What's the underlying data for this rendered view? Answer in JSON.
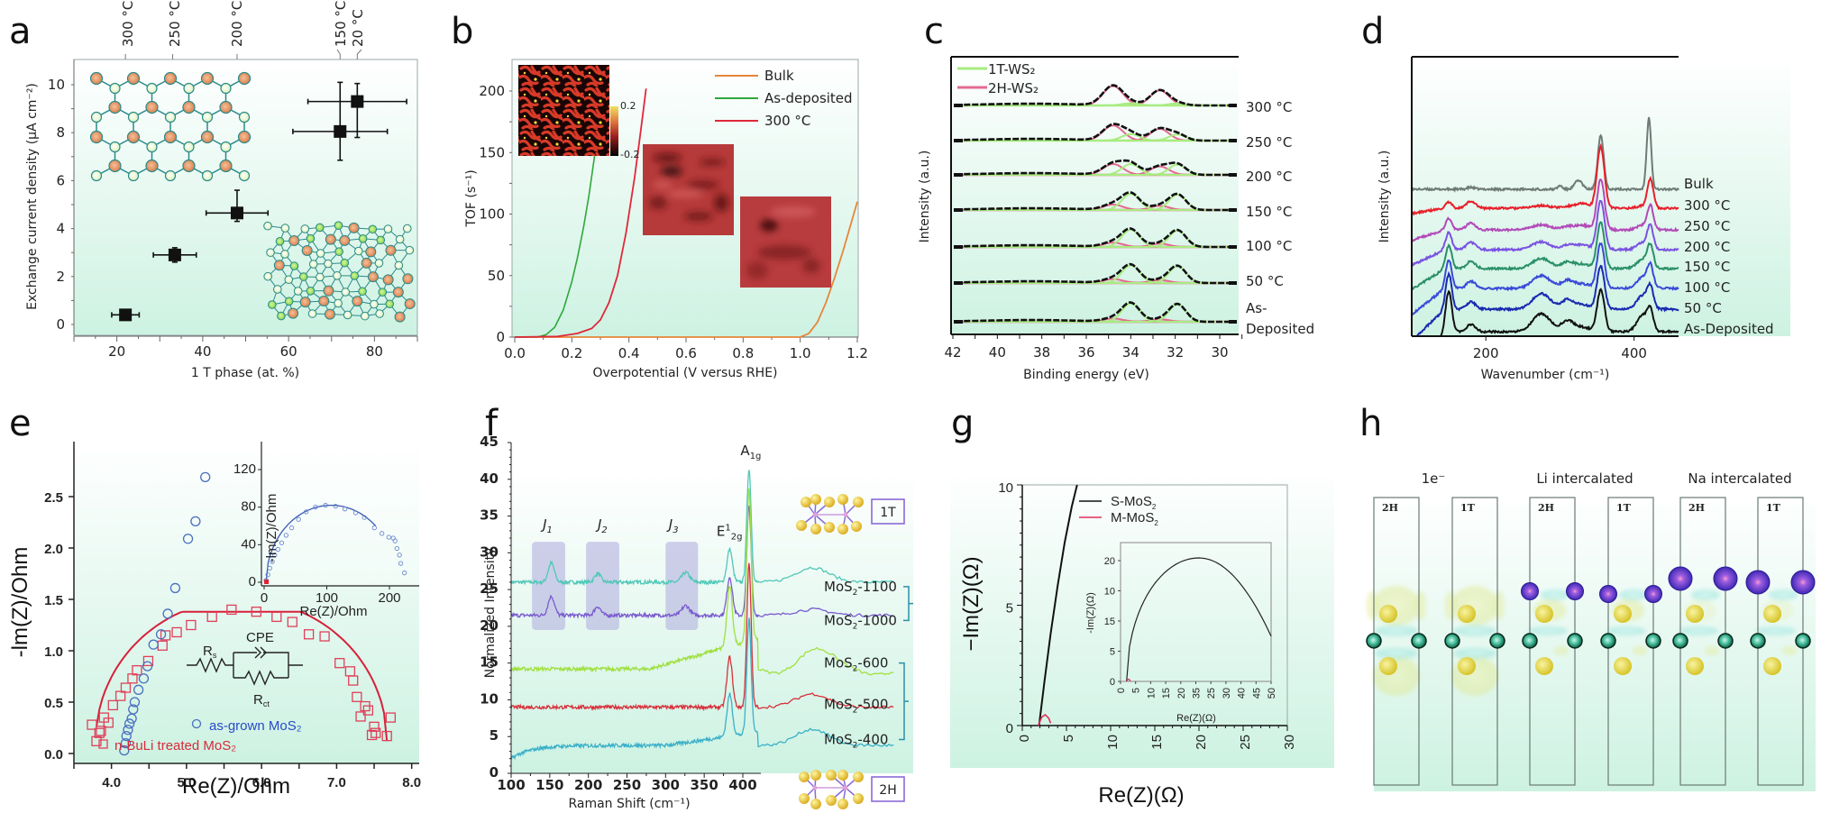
{
  "figure": {
    "panels": [
      "a",
      "b",
      "c",
      "d",
      "e",
      "f",
      "g",
      "h"
    ]
  },
  "chart_data": [
    {
      "panel": "a",
      "type": "scatter",
      "xlabel": "1 T phase (at. %)",
      "ylabel": "Exchange current density (μA cm⁻²)",
      "xlim": [
        10,
        90
      ],
      "ylim": [
        -0.5,
        11
      ],
      "xticks": [
        20,
        40,
        60,
        80
      ],
      "yticks": [
        0,
        2,
        4,
        6,
        8,
        10
      ],
      "top_axis_labels": [
        "300 °C",
        "250 °C",
        "200 °C",
        "150 °C",
        "20 °C"
      ],
      "top_axis_positions": [
        22,
        33,
        48,
        72,
        76
      ],
      "points": [
        {
          "label": "300 °C",
          "x": 22,
          "y": 0.4,
          "xerr": [
            3.2,
            3.2
          ],
          "yerr": [
            0.15,
            0.15
          ]
        },
        {
          "label": "250 °C",
          "x": 33.5,
          "y": 2.9,
          "xerr": [
            5,
            5
          ],
          "yerr": [
            0.3,
            0.3
          ]
        },
        {
          "label": "200 °C",
          "x": 48,
          "y": 4.65,
          "xerr": [
            7.2,
            7.2
          ],
          "yerr": [
            0.35,
            0.95
          ]
        },
        {
          "label": "150 °C",
          "x": 72,
          "y": 8.05,
          "xerr": [
            11,
            11
          ],
          "yerr": [
            1.2,
            2.05
          ]
        },
        {
          "label": "20 °C",
          "x": 76,
          "y": 9.3,
          "xerr": [
            11.5,
            11.5
          ],
          "yerr": [
            1.5,
            0.75
          ]
        }
      ],
      "insets": [
        "2H lattice (hexagonal)",
        "1T lattice (distorted)"
      ]
    },
    {
      "panel": "b",
      "type": "line",
      "xlabel": "Overpotential (V versus RHE)",
      "ylabel": "TOF (s⁻¹)",
      "xlim": [
        0,
        1.2
      ],
      "ylim": [
        0,
        220
      ],
      "xticks": [
        "0.0",
        "0.2",
        "0.4",
        "0.6",
        "0.8",
        "1.0",
        "1.2"
      ],
      "yticks": [
        0,
        50,
        100,
        150,
        200
      ],
      "legend": [
        "Bulk",
        "As-deposited",
        "300 °C"
      ],
      "legend_position": "top-right",
      "colorbar_labels": [
        "0.2",
        "-0.2"
      ],
      "series": [
        {
          "name": "Bulk",
          "color": "#e8853a",
          "x": [
            0,
            1.0,
            1.03,
            1.06,
            1.09,
            1.12,
            1.15,
            1.18,
            1.2
          ],
          "y": [
            0,
            0,
            3,
            12,
            28,
            48,
            70,
            94,
            110
          ]
        },
        {
          "name": "As-deposited",
          "color": "#2fa83a",
          "x": [
            0,
            0.08,
            0.11,
            0.14,
            0.17,
            0.2,
            0.22,
            0.24,
            0.26,
            0.28
          ],
          "y": [
            0,
            0,
            2,
            8,
            22,
            45,
            65,
            88,
            115,
            148
          ]
        },
        {
          "name": "300 °C",
          "color": "#e0283a",
          "x": [
            0,
            0.15,
            0.22,
            0.27,
            0.3,
            0.33,
            0.36,
            0.39,
            0.42,
            0.44,
            0.46
          ],
          "y": [
            0,
            0.5,
            3,
            7,
            14,
            28,
            50,
            85,
            130,
            165,
            202
          ]
        }
      ]
    },
    {
      "panel": "c",
      "type": "line",
      "xlabel": "Binding energy (eV)",
      "ylabel": "Intensity (a.u.)",
      "xlim": [
        42,
        29
      ],
      "xticks": [
        42,
        40,
        38,
        36,
        34,
        32,
        30
      ],
      "legend": [
        "1T-WS₂",
        "2H-WS₂"
      ],
      "legend_position": "top-left",
      "series_labels": [
        "300 °C",
        "250 °C",
        "200 °C",
        "150 °C",
        "100 °C",
        "50 °C",
        "As-Deposited"
      ],
      "peaks_eV": {
        "2H": [
          34.8,
          32.7
        ],
        "1T": [
          34.0,
          31.9
        ]
      },
      "fraction_1T": [
        0.1,
        0.3,
        0.5,
        0.75,
        0.8,
        0.82,
        0.85
      ]
    },
    {
      "panel": "d",
      "type": "line",
      "xlabel": "Wavenumber (cm⁻¹)",
      "ylabel": "Intensity (a.u.)",
      "xlim": [
        100,
        460
      ],
      "xticks": [
        200,
        400
      ],
      "series_labels": [
        "Bulk",
        "300 °C",
        "250 °C",
        "200 °C",
        "150 °C",
        "100 °C",
        "50 °C",
        "As-Deposited"
      ],
      "series_colors": [
        "#6f7b76",
        "#e8202a",
        "#b24ab8",
        "#7a52e0",
        "#2a9068",
        "#3a4ad8",
        "#1a2ab0",
        "#111111"
      ],
      "peaks_cm": [
        150,
        180,
        270,
        355,
        420
      ]
    },
    {
      "panel": "e",
      "type": "scatter",
      "xlabel": "Re(Z)/Ohm",
      "ylabel": "-lm(Z)/Ohm",
      "xlim": [
        3.5,
        8.1
      ],
      "ylim": [
        -0.05,
        3.0
      ],
      "xticks": [
        "4.0",
        "5.0",
        "6.0",
        "7.0",
        "8.0"
      ],
      "yticks": [
        "0.0",
        "0.5",
        "1.0",
        "1.5",
        "2.0",
        "2.5"
      ],
      "legend": [
        "as-grown MoS₂",
        "n-BuLi treated MoS₂"
      ],
      "legend_position": "bottom-center",
      "circuit_labels": [
        "R",
        "s",
        "CPE",
        "R",
        "ct"
      ],
      "series": [
        {
          "name": "as-grown MoS₂",
          "marker": "circle",
          "color": "#4a6fc0",
          "x": [
            4.17,
            4.19,
            4.2,
            4.22,
            4.24,
            4.27,
            4.29,
            4.31,
            4.36,
            4.43,
            4.48,
            4.56,
            4.66,
            4.75,
            4.85,
            5.02,
            5.12,
            5.25
          ],
          "y": [
            0.03,
            0.1,
            0.17,
            0.23,
            0.29,
            0.34,
            0.43,
            0.5,
            0.62,
            0.73,
            0.85,
            1.06,
            1.16,
            1.36,
            1.61,
            2.09,
            2.26,
            2.69
          ]
        },
        {
          "name": "n-BuLi treated MoS₂",
          "marker": "square",
          "color": "#e0405a",
          "x": [
            3.74,
            3.8,
            3.84,
            3.86,
            3.9,
            3.96,
            4.02,
            4.12,
            4.19,
            4.28,
            4.34,
            4.49,
            4.68,
            4.72,
            4.87,
            5.06,
            5.34,
            5.6,
            5.93,
            6.2,
            6.41,
            6.63,
            6.84,
            7.04,
            7.18,
            7.22,
            7.27,
            7.32,
            7.38,
            7.42,
            7.47,
            7.5,
            7.52,
            7.67,
            7.72
          ],
          "y": [
            0.28,
            0.12,
            0.2,
            0.22,
            0.35,
            0.3,
            0.47,
            0.56,
            0.64,
            0.73,
            0.81,
            0.9,
            1.05,
            1.15,
            1.18,
            1.25,
            1.33,
            1.4,
            1.38,
            1.33,
            1.28,
            1.16,
            1.14,
            0.88,
            0.8,
            0.71,
            0.55,
            0.36,
            0.46,
            0.42,
            0.18,
            0.26,
            0.2,
            0.17,
            0.35
          ]
        },
        {
          "name": "fit",
          "type": "line",
          "color": "#d8203a",
          "center": 5.73,
          "radius_re": 1.94,
          "peak": 1.38
        }
      ],
      "inset": {
        "xlabel": "Re(Z)/Ohm",
        "ylabel": "-lm(Z)/Ohm",
        "xlim": [
          -5,
          225
        ],
        "ylim": [
          -5,
          145
        ],
        "xticks": [
          0,
          100,
          200
        ],
        "yticks": [
          0,
          40,
          80,
          120
        ],
        "fit_peak": 82,
        "fit_end_x": 178,
        "points_x": [
          3,
          6,
          9,
          13,
          17,
          22,
          28,
          35,
          44,
          55,
          67,
          82,
          98,
          114,
          129,
          146,
          160,
          176,
          188,
          199,
          206,
          209,
          212,
          216,
          218,
          224
        ],
        "points_y": [
          2,
          8,
          15,
          22,
          29,
          35,
          42,
          50,
          58,
          67,
          75,
          80,
          82,
          81,
          78,
          74,
          69,
          58,
          52,
          48,
          47,
          44,
          36,
          29,
          20,
          10
        ]
      }
    },
    {
      "panel": "f",
      "type": "line",
      "xlabel": "Raman Shift (cm⁻¹)",
      "ylabel": "Normalized Intensity",
      "xlim": [
        100,
        425
      ],
      "ylim": [
        0,
        45
      ],
      "xticks": [
        100,
        150,
        200,
        250,
        300,
        350,
        400
      ],
      "yticks": [
        0,
        5,
        10,
        15,
        20,
        25,
        30,
        35,
        40,
        45
      ],
      "annotations": [
        "J1",
        "J2",
        "J3",
        "E¹₂g",
        "A₁g",
        "1T",
        "2H"
      ],
      "highlight_bands_cm": [
        [
          127,
          170
        ],
        [
          197,
          240
        ],
        [
          300,
          342
        ]
      ],
      "series": [
        {
          "name": "MoS₂-1100",
          "color": "#4fc8b8",
          "baseline": 26,
          "E2g": 30.5,
          "A1g": 41.5,
          "broad": 28
        },
        {
          "name": "MoS₂-1000",
          "color": "#7a5ad0",
          "baseline": 21.5,
          "E2g": 26.7,
          "A1g": 36.3,
          "broad": 22.3
        },
        {
          "name": "MoS₂-600",
          "color": "#a0e040",
          "baseline": 14.2,
          "E2g": 22.3,
          "A1g": 35.0,
          "broad": 16.5
        },
        {
          "name": "MoS₂-500",
          "color": "#d8303a",
          "baseline": 9.0,
          "E2g": 15.8,
          "A1g": 28.5,
          "broad": 10.8
        },
        {
          "name": "MoS₂-400",
          "color": "#3ab0c8",
          "baseline": 3.8,
          "E2g": 9.5,
          "A1g": 19.3,
          "broad": 6.0
        }
      ]
    },
    {
      "panel": "g",
      "type": "line",
      "xlabel": "Re(Z)(Ω)",
      "ylabel": "−Im(Z)(Ω)",
      "xlim": [
        0,
        30
      ],
      "ylim": [
        0,
        10
      ],
      "xticks": [
        "0",
        "5",
        "10",
        "15",
        "20",
        "25",
        "30"
      ],
      "yticks": [
        "0",
        "5",
        "10"
      ],
      "legend": [
        "S-MoS₂",
        "M-MoS₂"
      ],
      "legend_position": "top-left",
      "series": [
        {
          "name": "S-MoS₂",
          "color": "#111111",
          "x": [
            1.9,
            2.5,
            3.2,
            4.0,
            4.8,
            5.6,
            6.2
          ],
          "y": [
            0,
            1.8,
            3.8,
            5.8,
            7.6,
            9.1,
            10
          ]
        },
        {
          "name": "M-MoS₂",
          "color": "#e0305a",
          "x": [
            1.8,
            2.2,
            2.6,
            3.0,
            3.2
          ],
          "y": [
            0,
            0.35,
            0.45,
            0.3,
            0.1
          ]
        }
      ],
      "inset": {
        "xlabel": "Re(Z)(Ω)",
        "ylabel": "-Im(Z)(Ω)",
        "xticks": [
          "0",
          "5",
          "10",
          "15",
          "20",
          "35",
          "25",
          "30",
          "40",
          "45",
          "50"
        ],
        "yticks": [
          "0",
          "5",
          "15",
          "10",
          "20"
        ],
        "xlim": [
          0,
          50
        ],
        "ylim": [
          0,
          22
        ],
        "arc": {
          "start_x": 2,
          "peak_x": 26,
          "peak_y": 20.5,
          "end_x": 50,
          "end_y": 7.5
        }
      }
    },
    {
      "panel": "h",
      "type": "diagram",
      "group_titles": [
        "1e⁻",
        "Li intercalated",
        "Na intercalated"
      ],
      "cell_labels": [
        "2H",
        "1T",
        "2H",
        "1T",
        "2H",
        "1T"
      ],
      "intercalant": [
        null,
        null,
        "Li",
        "Li",
        "Na",
        "Na"
      ]
    }
  ]
}
